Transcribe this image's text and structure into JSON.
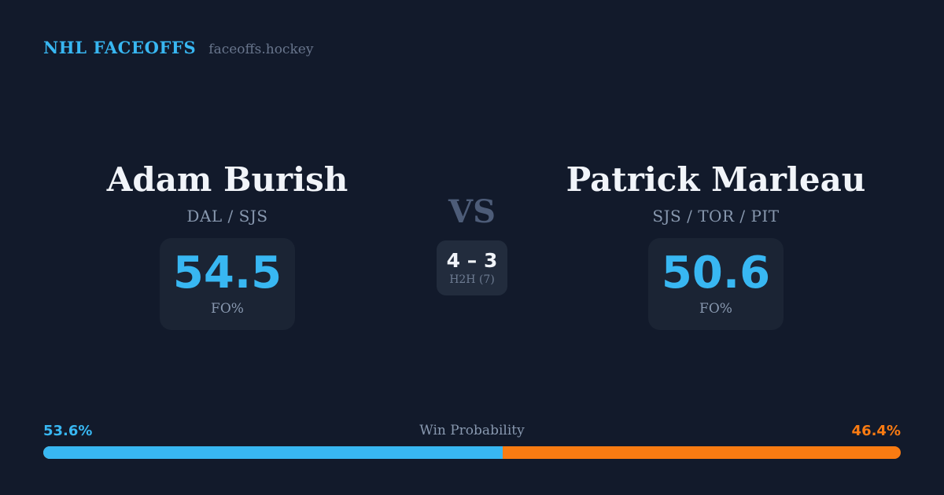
{
  "header": {
    "brand": "NHL FACEOFFS",
    "site": "faceoffs.hockey"
  },
  "players": {
    "left": {
      "name": "Adam Burish",
      "teams": "DAL / SJS",
      "fo_value": "54.5",
      "fo_label": "FO%",
      "win_prob_label": "53.6%",
      "win_prob_pct": 53.6
    },
    "right": {
      "name": "Patrick Marleau",
      "teams": "SJS / TOR / PIT",
      "fo_value": "50.6",
      "fo_label": "FO%",
      "win_prob_label": "46.4%",
      "win_prob_pct": 46.4
    }
  },
  "center": {
    "vs_label": "VS",
    "h2h_score": "4 – 3",
    "h2h_label": "H2H (7)"
  },
  "win_probability": {
    "title": "Win Probability",
    "left_pct": 53.6,
    "right_pct": 46.4
  },
  "colors": {
    "bg": "#121a2b",
    "card-bg": "#1b2434",
    "h2h-bg": "#222c3d",
    "accent-blue": "#38b7f2",
    "accent-orange": "#f97b12",
    "name-white": "#f1f4f9",
    "muted": "#8898af",
    "muted-dark": "#6e7c92",
    "vs-gray": "#4d5c78",
    "site-gray": "#68758c"
  }
}
